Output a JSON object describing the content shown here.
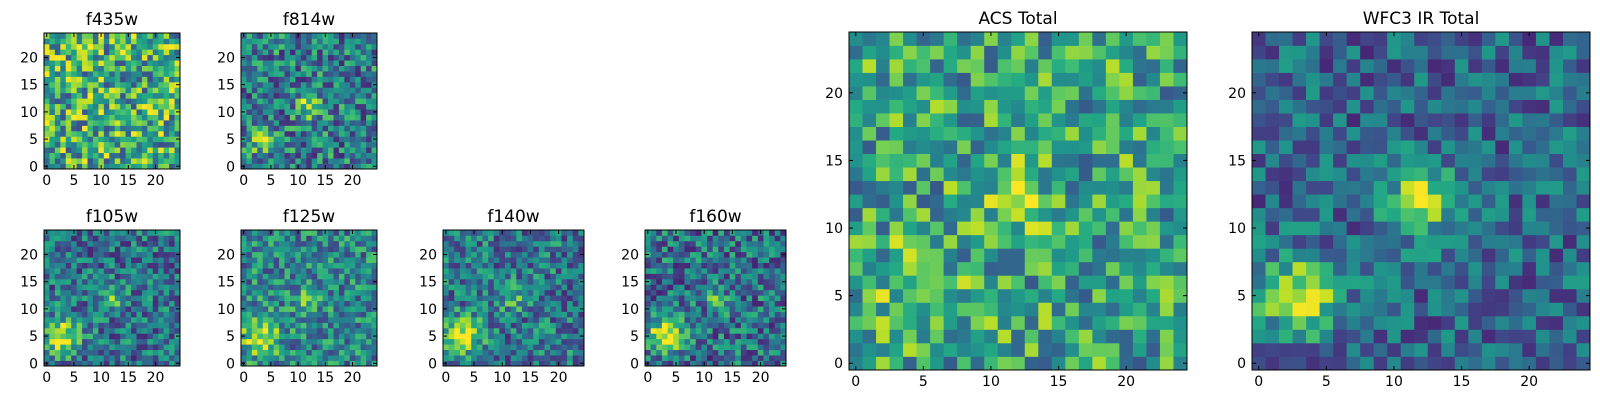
{
  "chart_data": [
    {
      "type": "heatmap",
      "title": "f435w",
      "xlim": [
        -0.5,
        24.5
      ],
      "ylim": [
        -0.5,
        24.5
      ],
      "xticks": [
        0,
        5,
        10,
        15,
        20
      ],
      "yticks": [
        0,
        5,
        10,
        15,
        20
      ],
      "colormap": "viridis",
      "grid_size": 25,
      "sources": [],
      "noise_level": 0.55,
      "base_level": 0.62,
      "seed": 11
    },
    {
      "type": "heatmap",
      "title": "f814w",
      "xlim": [
        -0.5,
        24.5
      ],
      "ylim": [
        -0.5,
        24.5
      ],
      "xticks": [
        0,
        5,
        10,
        15,
        20
      ],
      "yticks": [
        0,
        5,
        10,
        15,
        20
      ],
      "colormap": "viridis",
      "grid_size": 25,
      "sources": [
        {
          "x": 12,
          "y": 11,
          "amp": 0.45,
          "sigma": 1.6
        },
        {
          "x": 3,
          "y": 5,
          "amp": 0.35,
          "sigma": 1.8
        }
      ],
      "noise_level": 0.45,
      "base_level": 0.42,
      "seed": 23
    },
    {
      "type": "heatmap",
      "title": "f105w",
      "xlim": [
        -0.5,
        24.5
      ],
      "ylim": [
        -0.5,
        24.5
      ],
      "xticks": [
        0,
        5,
        10,
        15,
        20
      ],
      "yticks": [
        0,
        5,
        10,
        15,
        20
      ],
      "colormap": "viridis",
      "grid_size": 25,
      "sources": [
        {
          "x": 3,
          "y": 5,
          "amp": 0.6,
          "sigma": 2.2
        },
        {
          "x": 12,
          "y": 12,
          "amp": 0.3,
          "sigma": 1.6
        }
      ],
      "noise_level": 0.4,
      "base_level": 0.38,
      "seed": 37
    },
    {
      "type": "heatmap",
      "title": "f125w",
      "xlim": [
        -0.5,
        24.5
      ],
      "ylim": [
        -0.5,
        24.5
      ],
      "xticks": [
        0,
        5,
        10,
        15,
        20
      ],
      "yticks": [
        0,
        5,
        10,
        15,
        20
      ],
      "colormap": "viridis",
      "grid_size": 25,
      "sources": [
        {
          "x": 3,
          "y": 5,
          "amp": 0.5,
          "sigma": 2.4
        },
        {
          "x": 12,
          "y": 12,
          "amp": 0.25,
          "sigma": 1.8
        }
      ],
      "noise_level": 0.4,
      "base_level": 0.45,
      "seed": 41
    },
    {
      "type": "heatmap",
      "title": "f140w",
      "xlim": [
        -0.5,
        24.5
      ],
      "ylim": [
        -0.5,
        24.5
      ],
      "xticks": [
        0,
        5,
        10,
        15,
        20
      ],
      "yticks": [
        0,
        5,
        10,
        15,
        20
      ],
      "colormap": "viridis",
      "grid_size": 25,
      "sources": [
        {
          "x": 3,
          "y": 5,
          "amp": 0.6,
          "sigma": 2.2
        },
        {
          "x": 12,
          "y": 12,
          "amp": 0.25,
          "sigma": 1.6
        }
      ],
      "noise_level": 0.4,
      "base_level": 0.4,
      "seed": 53
    },
    {
      "type": "heatmap",
      "title": "f160w",
      "xlim": [
        -0.5,
        24.5
      ],
      "ylim": [
        -0.5,
        24.5
      ],
      "xticks": [
        0,
        5,
        10,
        15,
        20
      ],
      "yticks": [
        0,
        5,
        10,
        15,
        20
      ],
      "colormap": "viridis",
      "grid_size": 25,
      "sources": [
        {
          "x": 3,
          "y": 5,
          "amp": 0.62,
          "sigma": 2.1
        },
        {
          "x": 12,
          "y": 12,
          "amp": 0.25,
          "sigma": 1.6
        }
      ],
      "noise_level": 0.42,
      "base_level": 0.38,
      "seed": 67
    },
    {
      "type": "heatmap",
      "title": "ACS Total",
      "xlim": [
        -0.5,
        24.5
      ],
      "ylim": [
        -0.5,
        24.5
      ],
      "xticks": [
        0,
        5,
        10,
        15,
        20
      ],
      "yticks": [
        0,
        5,
        10,
        15,
        20
      ],
      "colormap": "viridis",
      "grid_size": 25,
      "sources": [
        {
          "x": 12,
          "y": 12,
          "amp": 0.35,
          "sigma": 1.6
        },
        {
          "x": 4,
          "y": 5,
          "amp": 0.2,
          "sigma": 2.5
        }
      ],
      "noise_level": 0.45,
      "base_level": 0.58,
      "seed": 79
    },
    {
      "type": "heatmap",
      "title": "WFC3 IR Total",
      "xlim": [
        -0.5,
        24.5
      ],
      "ylim": [
        -0.5,
        24.5
      ],
      "xticks": [
        0,
        5,
        10,
        15,
        20
      ],
      "yticks": [
        0,
        5,
        10,
        15,
        20
      ],
      "colormap": "viridis",
      "grid_size": 25,
      "sources": [
        {
          "x": 3,
          "y": 5,
          "amp": 0.62,
          "sigma": 2.0
        },
        {
          "x": 12,
          "y": 12,
          "amp": 0.62,
          "sigma": 1.7
        }
      ],
      "noise_level": 0.32,
      "base_level": 0.33,
      "seed": 97
    }
  ]
}
